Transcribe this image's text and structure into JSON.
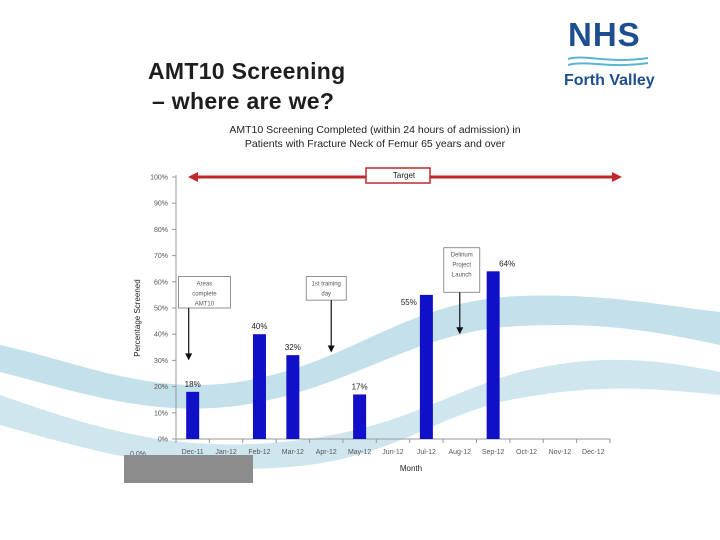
{
  "slide": {
    "title_line1": "AMT10 Screening",
    "title_line2": "– where are we?"
  },
  "logo": {
    "name": "NHS",
    "subtitle": "Forth Valley",
    "color": "#1d4e8f"
  },
  "chart_data": {
    "type": "bar",
    "title_line1": "AMT10 Screening Completed (within 24 hours of admission) in",
    "title_line2": "Patients with Fracture Neck of Femur 65 years and over",
    "xlabel": "Month",
    "ylabel": "Percentage Screened",
    "ylim": [
      0,
      100
    ],
    "ytick_step": 10,
    "grid": false,
    "categories": [
      "Dec-11",
      "Jan-12",
      "Feb-12",
      "Mar-12",
      "Apr-12",
      "May-12",
      "Jun-12",
      "Jul-12",
      "Aug-12",
      "Sep-12",
      "Oct-12",
      "Nov-12",
      "Dec-12"
    ],
    "values": [
      18,
      null,
      40,
      32,
      null,
      17,
      null,
      55,
      null,
      64,
      null,
      null,
      null
    ],
    "data_labels": [
      "18%",
      "",
      "40%",
      "32%",
      "",
      "17%",
      "",
      "55%",
      "",
      "64%",
      "",
      "",
      ""
    ],
    "bar_color": "#1010c8",
    "target": {
      "label": "Target",
      "value": 100,
      "color": "#c0282d"
    },
    "annotations": [
      {
        "lines": [
          "Areas",
          "complete",
          "AMT10"
        ],
        "boxed": true,
        "x_from": "Dec-11",
        "x_to": "Jan-12",
        "y_top": 62,
        "y_bottom": 50,
        "arrow_x": "Dec-11",
        "arrow_to": 30
      },
      {
        "lines": [
          "1st training",
          "day"
        ],
        "boxed": true,
        "x_from": "Apr-12",
        "x_to": "Apr-12",
        "y_top": 62,
        "y_bottom": 53,
        "arrow_x": "Apr-12",
        "arrow_to": 33
      },
      {
        "lines": [
          "Delirium",
          "Project",
          "Launch"
        ],
        "boxed": true,
        "x_from": "Aug-12",
        "x_to": "Aug-12",
        "y_top": 73,
        "y_bottom": 56,
        "arrow_x": "Aug-12",
        "arrow_to": 40
      }
    ],
    "footer_tick": "0.0%"
  },
  "colors": {
    "wave": "#b9dbe8",
    "title_text": "#1e1e1e",
    "footer_box": "#8c8c8c"
  }
}
